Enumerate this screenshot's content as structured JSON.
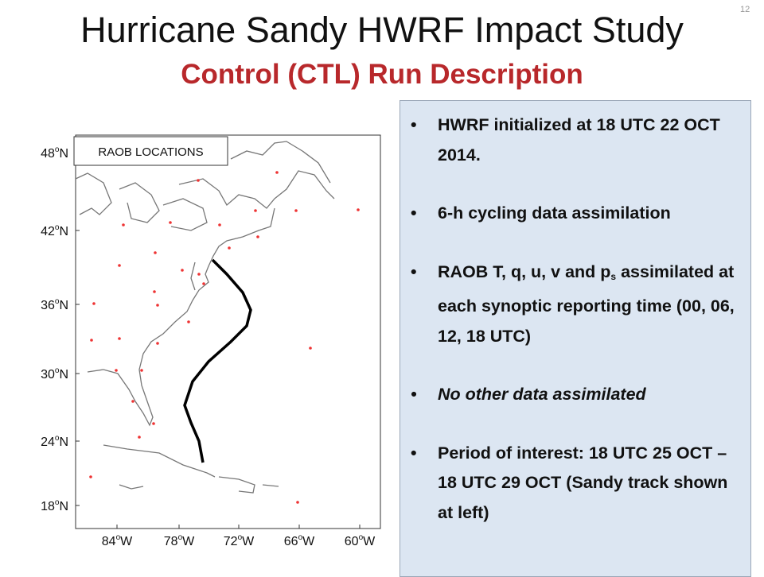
{
  "header": {
    "title": "Hurricane Sandy HWRF Impact Study",
    "subtitle": "Control (CTL) Run Description",
    "page_number": "12"
  },
  "map": {
    "label": "RAOB LOCATIONS",
    "lat_labels": [
      {
        "num": "48",
        "deg": "o",
        "hemi": "N"
      },
      {
        "num": "42",
        "deg": "o",
        "hemi": "N"
      },
      {
        "num": "36",
        "deg": "o",
        "hemi": "N"
      },
      {
        "num": "30",
        "deg": "o",
        "hemi": "N"
      },
      {
        "num": "24",
        "deg": "o",
        "hemi": "N"
      },
      {
        "num": "18",
        "deg": "o",
        "hemi": "N"
      }
    ],
    "lon_labels": [
      {
        "num": "84",
        "deg": "o",
        "hemi": "W"
      },
      {
        "num": "78",
        "deg": "o",
        "hemi": "W"
      },
      {
        "num": "72",
        "deg": "o",
        "hemi": "W"
      },
      {
        "num": "66",
        "deg": "o",
        "hemi": "W"
      },
      {
        "num": "60",
        "deg": "o",
        "hemi": "W"
      }
    ]
  },
  "bullets": [
    {
      "text": "HWRF initialized at 18 UTC 22 OCT 2014."
    },
    {
      "text": "6-h cycling data assimilation"
    },
    {
      "before": "RAOB T, q, u, v and p",
      "sub": "s",
      "after": " assimilated at each synoptic reporting time (00, 06, 12, 18 UTC)"
    },
    {
      "text": "No other data assimilated"
    },
    {
      "text": "Period of interest: 18 UTC 25 OCT – 18 UTC 29 OCT (Sandy track shown at left)"
    }
  ]
}
